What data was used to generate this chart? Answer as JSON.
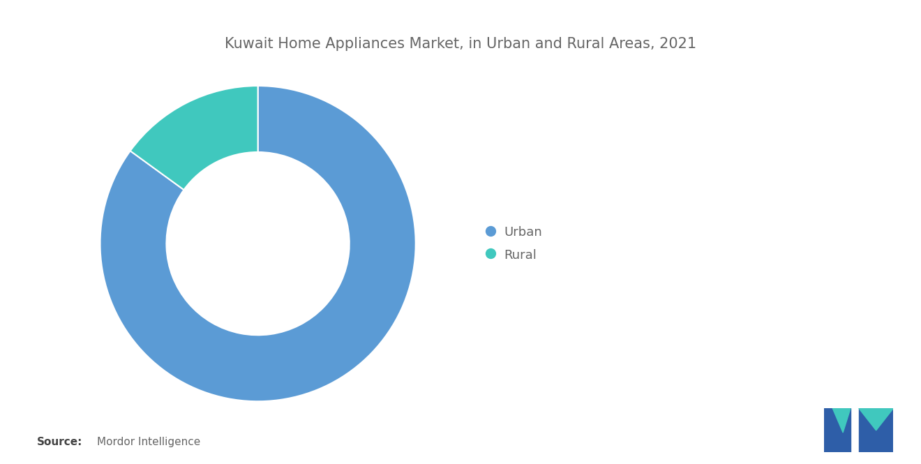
{
  "title": "Kuwait Home Appliances Market, in Urban and Rural Areas, 2021",
  "slices": [
    85,
    15
  ],
  "labels": [
    "Urban",
    "Rural"
  ],
  "colors": [
    "#5B9BD5",
    "#40C8BE"
  ],
  "background_color": "#FFFFFF",
  "title_color": "#666666",
  "title_fontsize": 15,
  "legend_labels": [
    "Urban",
    "Rural"
  ],
  "source_bold": "Source:",
  "source_text": "  Mordor Intelligence",
  "donut_width": 0.42,
  "start_angle": 90,
  "counterclock": false
}
